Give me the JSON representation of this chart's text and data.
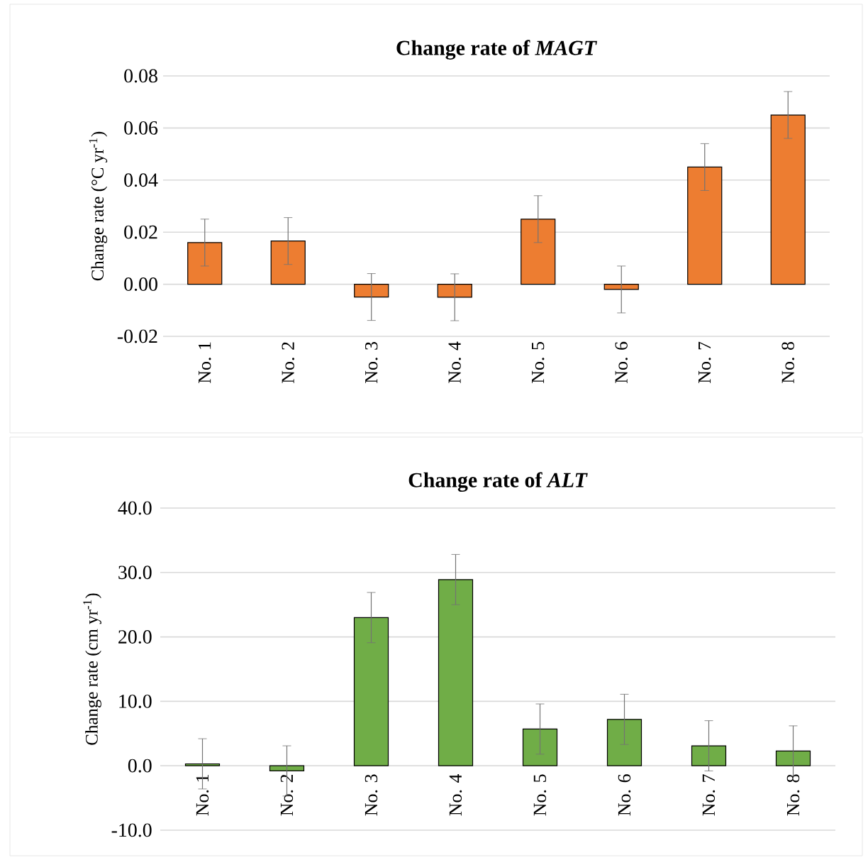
{
  "chart_data": [
    {
      "type": "bar",
      "title": "Change rate of *MAGT*",
      "ylabel": "Change rate (°C yr$^{-1}$)",
      "categories": [
        "No. 1",
        "No. 2",
        "No. 3",
        "No. 4",
        "No. 5",
        "No. 6",
        "No. 7",
        "No. 8"
      ],
      "values": [
        0.016,
        0.0166,
        -0.0049,
        -0.005,
        0.025,
        -0.002,
        0.045,
        0.065
      ],
      "errors": [
        0.009,
        0.009,
        0.009,
        0.009,
        0.009,
        0.009,
        0.009,
        0.009
      ],
      "color": "#ed7d31",
      "ylim": [
        -0.02,
        0.08
      ],
      "yticks": [
        {
          "value": -0.02,
          "label": "-0.02"
        },
        {
          "value": 0,
          "label": "0.00"
        },
        {
          "value": 0.02,
          "label": "0.02"
        },
        {
          "value": 0.04,
          "label": "0.04"
        },
        {
          "value": 0.06,
          "label": "0.06"
        },
        {
          "value": 0.08,
          "label": "0.08"
        }
      ],
      "grid": "y"
    },
    {
      "type": "bar",
      "title": "Change rate of *ALT*",
      "ylabel": "Change rate (cm yr$^{-1}$)",
      "categories": [
        "No. 1",
        "No. 2",
        "No. 3",
        "No. 4",
        "No. 5",
        "No. 6",
        "No. 7",
        "No. 8"
      ],
      "values": [
        0.3,
        -0.8,
        23.0,
        28.9,
        5.7,
        7.2,
        3.1,
        2.3
      ],
      "errors": [
        3.9,
        3.9,
        3.9,
        3.9,
        3.9,
        3.9,
        3.9,
        3.9
      ],
      "color": "#70ad47",
      "ylim": [
        -10,
        40
      ],
      "yticks": [
        {
          "value": -10,
          "label": "-10.0"
        },
        {
          "value": 0,
          "label": "0.0"
        },
        {
          "value": 10,
          "label": "10.0"
        },
        {
          "value": 20,
          "label": "20.0"
        },
        {
          "value": 30,
          "label": "30.0"
        },
        {
          "value": 40,
          "label": "40.0"
        }
      ],
      "grid": "y"
    }
  ]
}
